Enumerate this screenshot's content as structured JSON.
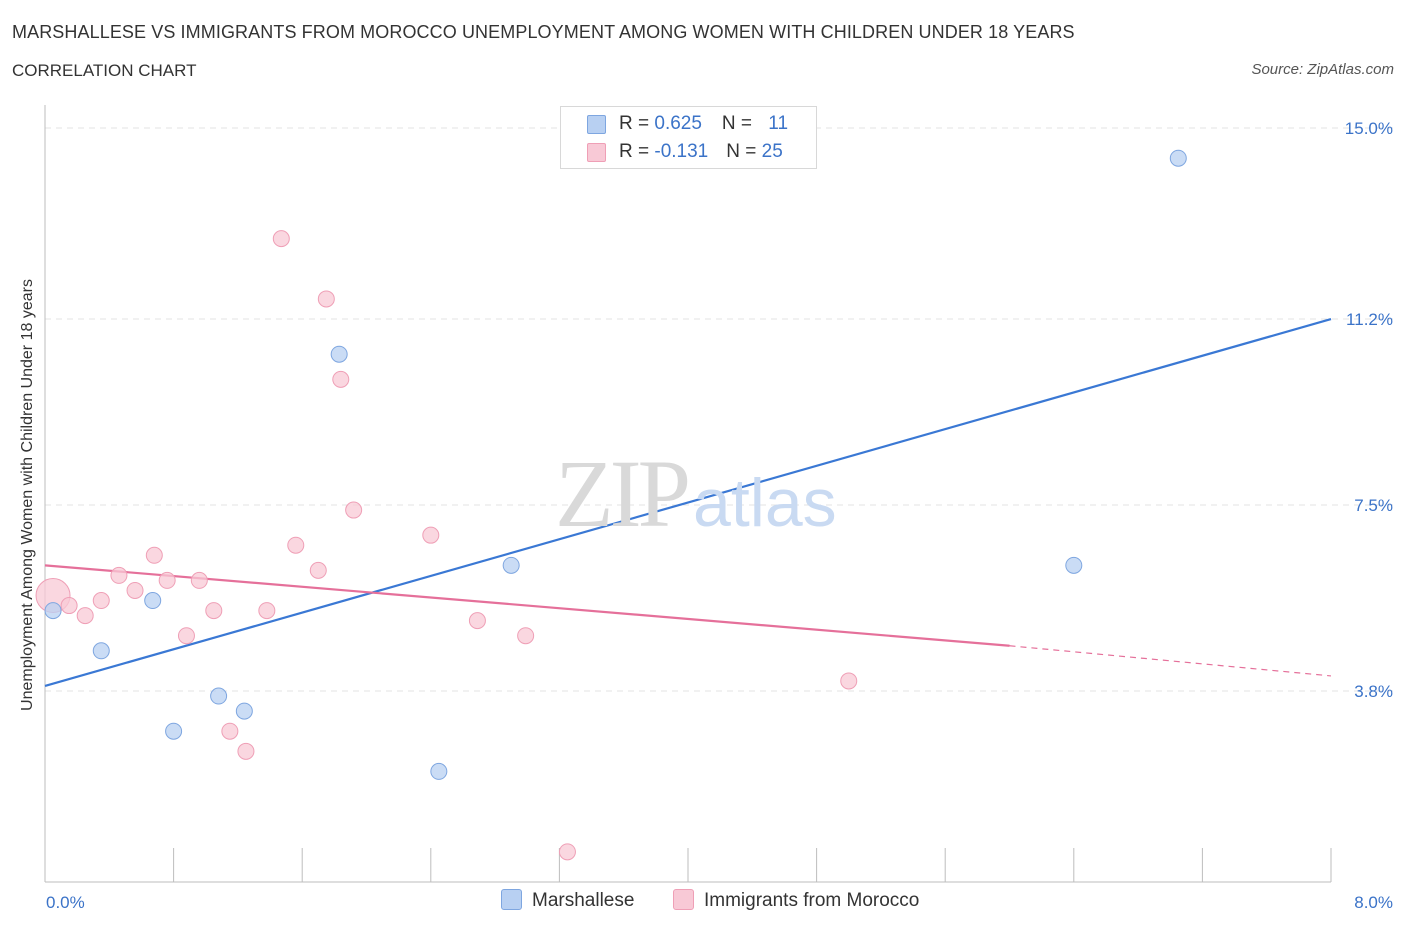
{
  "header": {
    "title": "MARSHALLESE VS IMMIGRANTS FROM MOROCCO UNEMPLOYMENT AMONG WOMEN WITH CHILDREN UNDER 18 YEARS",
    "subtitle": "CORRELATION CHART",
    "source": "Source: ZipAtlas.com"
  },
  "watermark": {
    "zip": "ZIP",
    "atlas": "atlas"
  },
  "legend_top": {
    "rows": [
      {
        "r_label": "R = ",
        "r_value": "0.625",
        "n_label": "N = ",
        "n_value": "11"
      },
      {
        "r_label": "R = ",
        "r_value": "-0.131",
        "n_label": "N = ",
        "n_value": "25"
      }
    ]
  },
  "colors": {
    "marshallese_fill": "#b8d0f2",
    "marshallese_stroke": "#7ea6e0",
    "marshallese_line": "#3a78d4",
    "morocco_fill": "#f8c9d6",
    "morocco_stroke": "#ef9fb6",
    "morocco_line": "#e5709a",
    "tick_label": "#3b73c8",
    "grid": "#e3e3e3"
  },
  "chart_data": {
    "type": "scatter",
    "title": "MARSHALLESE VS IMMIGRANTS FROM MOROCCO UNEMPLOYMENT AMONG WOMEN WITH CHILDREN UNDER 18 YEARS",
    "xlabel": "",
    "ylabel": "Unemployment Among Women with Children Under 18 years",
    "xlim": [
      0,
      8.0
    ],
    "ylim": [
      0,
      15.2
    ],
    "x_tick_labels": [
      "0.0%",
      "8.0%"
    ],
    "y_ticks": [
      3.8,
      7.5,
      11.2,
      15.0
    ],
    "y_tick_labels": [
      "3.8%",
      "7.5%",
      "11.2%",
      "15.0%"
    ],
    "grid": "horizontal dashed",
    "legend_position": "bottom-center",
    "series": [
      {
        "name": "Marshallese",
        "color": "#3a78d4",
        "points": [
          {
            "x": 0.05,
            "y": 5.4
          },
          {
            "x": 0.35,
            "y": 4.6
          },
          {
            "x": 0.67,
            "y": 5.6
          },
          {
            "x": 0.8,
            "y": 3.0
          },
          {
            "x": 1.08,
            "y": 3.7
          },
          {
            "x": 1.24,
            "y": 3.4
          },
          {
            "x": 1.83,
            "y": 10.5
          },
          {
            "x": 2.45,
            "y": 2.2
          },
          {
            "x": 2.9,
            "y": 6.3
          },
          {
            "x": 6.4,
            "y": 6.3
          },
          {
            "x": 7.05,
            "y": 14.4
          }
        ],
        "trend": {
          "x": [
            0.0,
            8.0
          ],
          "y": [
            3.9,
            11.2
          ],
          "r": 0.625,
          "n": 11
        }
      },
      {
        "name": "Immigrants from Morocco",
        "color": "#e5709a",
        "points": [
          {
            "x": 0.05,
            "y": 5.7,
            "size": "large"
          },
          {
            "x": 0.15,
            "y": 5.5
          },
          {
            "x": 0.25,
            "y": 5.3
          },
          {
            "x": 0.35,
            "y": 5.6
          },
          {
            "x": 0.46,
            "y": 6.1
          },
          {
            "x": 0.56,
            "y": 5.8
          },
          {
            "x": 0.68,
            "y": 6.5
          },
          {
            "x": 0.76,
            "y": 6.0
          },
          {
            "x": 0.88,
            "y": 4.9
          },
          {
            "x": 0.96,
            "y": 6.0
          },
          {
            "x": 1.05,
            "y": 5.4
          },
          {
            "x": 1.15,
            "y": 3.0
          },
          {
            "x": 1.25,
            "y": 2.6
          },
          {
            "x": 1.38,
            "y": 5.4
          },
          {
            "x": 1.47,
            "y": 12.8
          },
          {
            "x": 1.56,
            "y": 6.7
          },
          {
            "x": 1.7,
            "y": 6.2
          },
          {
            "x": 1.75,
            "y": 11.6
          },
          {
            "x": 1.84,
            "y": 10.0
          },
          {
            "x": 1.92,
            "y": 7.4
          },
          {
            "x": 2.4,
            "y": 6.9
          },
          {
            "x": 2.69,
            "y": 5.2
          },
          {
            "x": 2.99,
            "y": 4.9
          },
          {
            "x": 3.25,
            "y": 0.6
          },
          {
            "x": 5.0,
            "y": 4.0
          }
        ],
        "trend": {
          "x": [
            0.0,
            6.0,
            8.0
          ],
          "y": [
            6.3,
            4.7,
            4.1
          ],
          "dashed_from_x": 6.0,
          "r": -0.131,
          "n": 25
        }
      }
    ]
  },
  "legend_bottom": {
    "items": [
      {
        "label": "Marshallese"
      },
      {
        "label": "Immigrants from Morocco"
      }
    ]
  }
}
